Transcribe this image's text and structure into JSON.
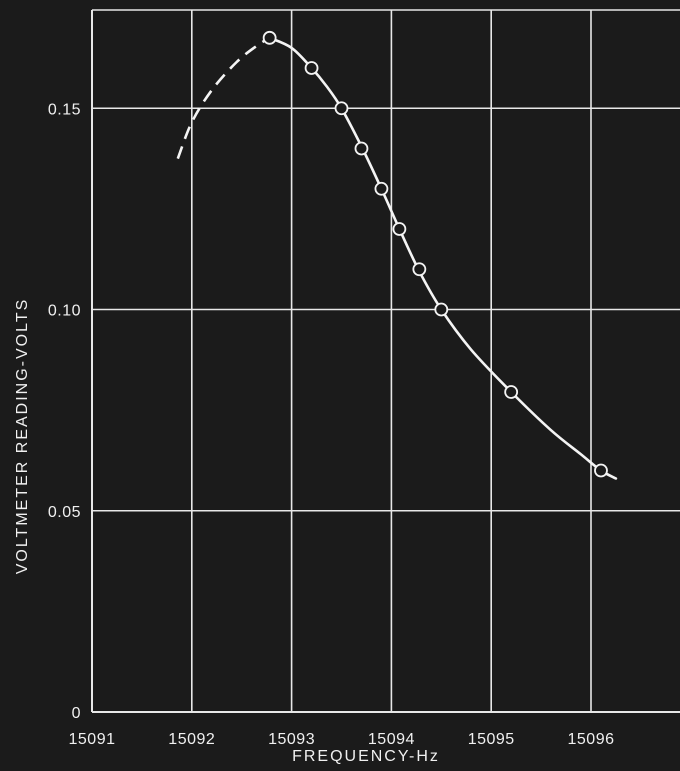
{
  "chart_data": {
    "type": "line",
    "title": "",
    "xlabel": "FREQUENCY-Hz",
    "ylabel": "VOLTMETER READING-VOLTS",
    "xlim": [
      15091,
      15096.9
    ],
    "ylim": [
      0,
      0.175
    ],
    "x_ticks": [
      15091,
      15092,
      15093,
      15094,
      15095,
      15096
    ],
    "x_tick_labels": [
      "15091",
      "15092",
      "15093",
      "15094",
      "15095",
      "15096"
    ],
    "y_ticks": [
      0,
      0.05,
      0.1,
      0.15
    ],
    "y_tick_labels": [
      "0",
      "0.05",
      "0.10",
      "0.15"
    ],
    "grid": true,
    "series": [
      {
        "style": "circle-markers",
        "x": [
          15092.78,
          15093.2,
          15093.5,
          15093.7,
          15093.9,
          15094.08,
          15094.28,
          15094.5,
          15095.2,
          15096.1
        ],
        "y": [
          0.1675,
          0.16,
          0.15,
          0.14,
          0.13,
          0.12,
          0.11,
          0.1,
          0.0795,
          0.06
        ]
      },
      {
        "style": "dashed-extrapolation",
        "x": [
          15091.86,
          15092.0,
          15092.2,
          15092.45,
          15092.65,
          15092.78
        ],
        "y": [
          0.1375,
          0.1465,
          0.1545,
          0.1615,
          0.1655,
          0.1675
        ]
      },
      {
        "style": "solid-fit",
        "x": [
          15092.78,
          15093.0,
          15093.2,
          15093.35,
          15093.5,
          15093.7,
          15093.9,
          15094.08,
          15094.28,
          15094.5,
          15094.8,
          15095.2,
          15095.6,
          15095.9,
          15096.1,
          15096.25
        ],
        "y": [
          0.1675,
          0.165,
          0.16,
          0.1555,
          0.15,
          0.1405,
          0.13,
          0.12,
          0.1095,
          0.1,
          0.09,
          0.0795,
          0.07,
          0.064,
          0.06,
          0.058
        ]
      }
    ]
  }
}
